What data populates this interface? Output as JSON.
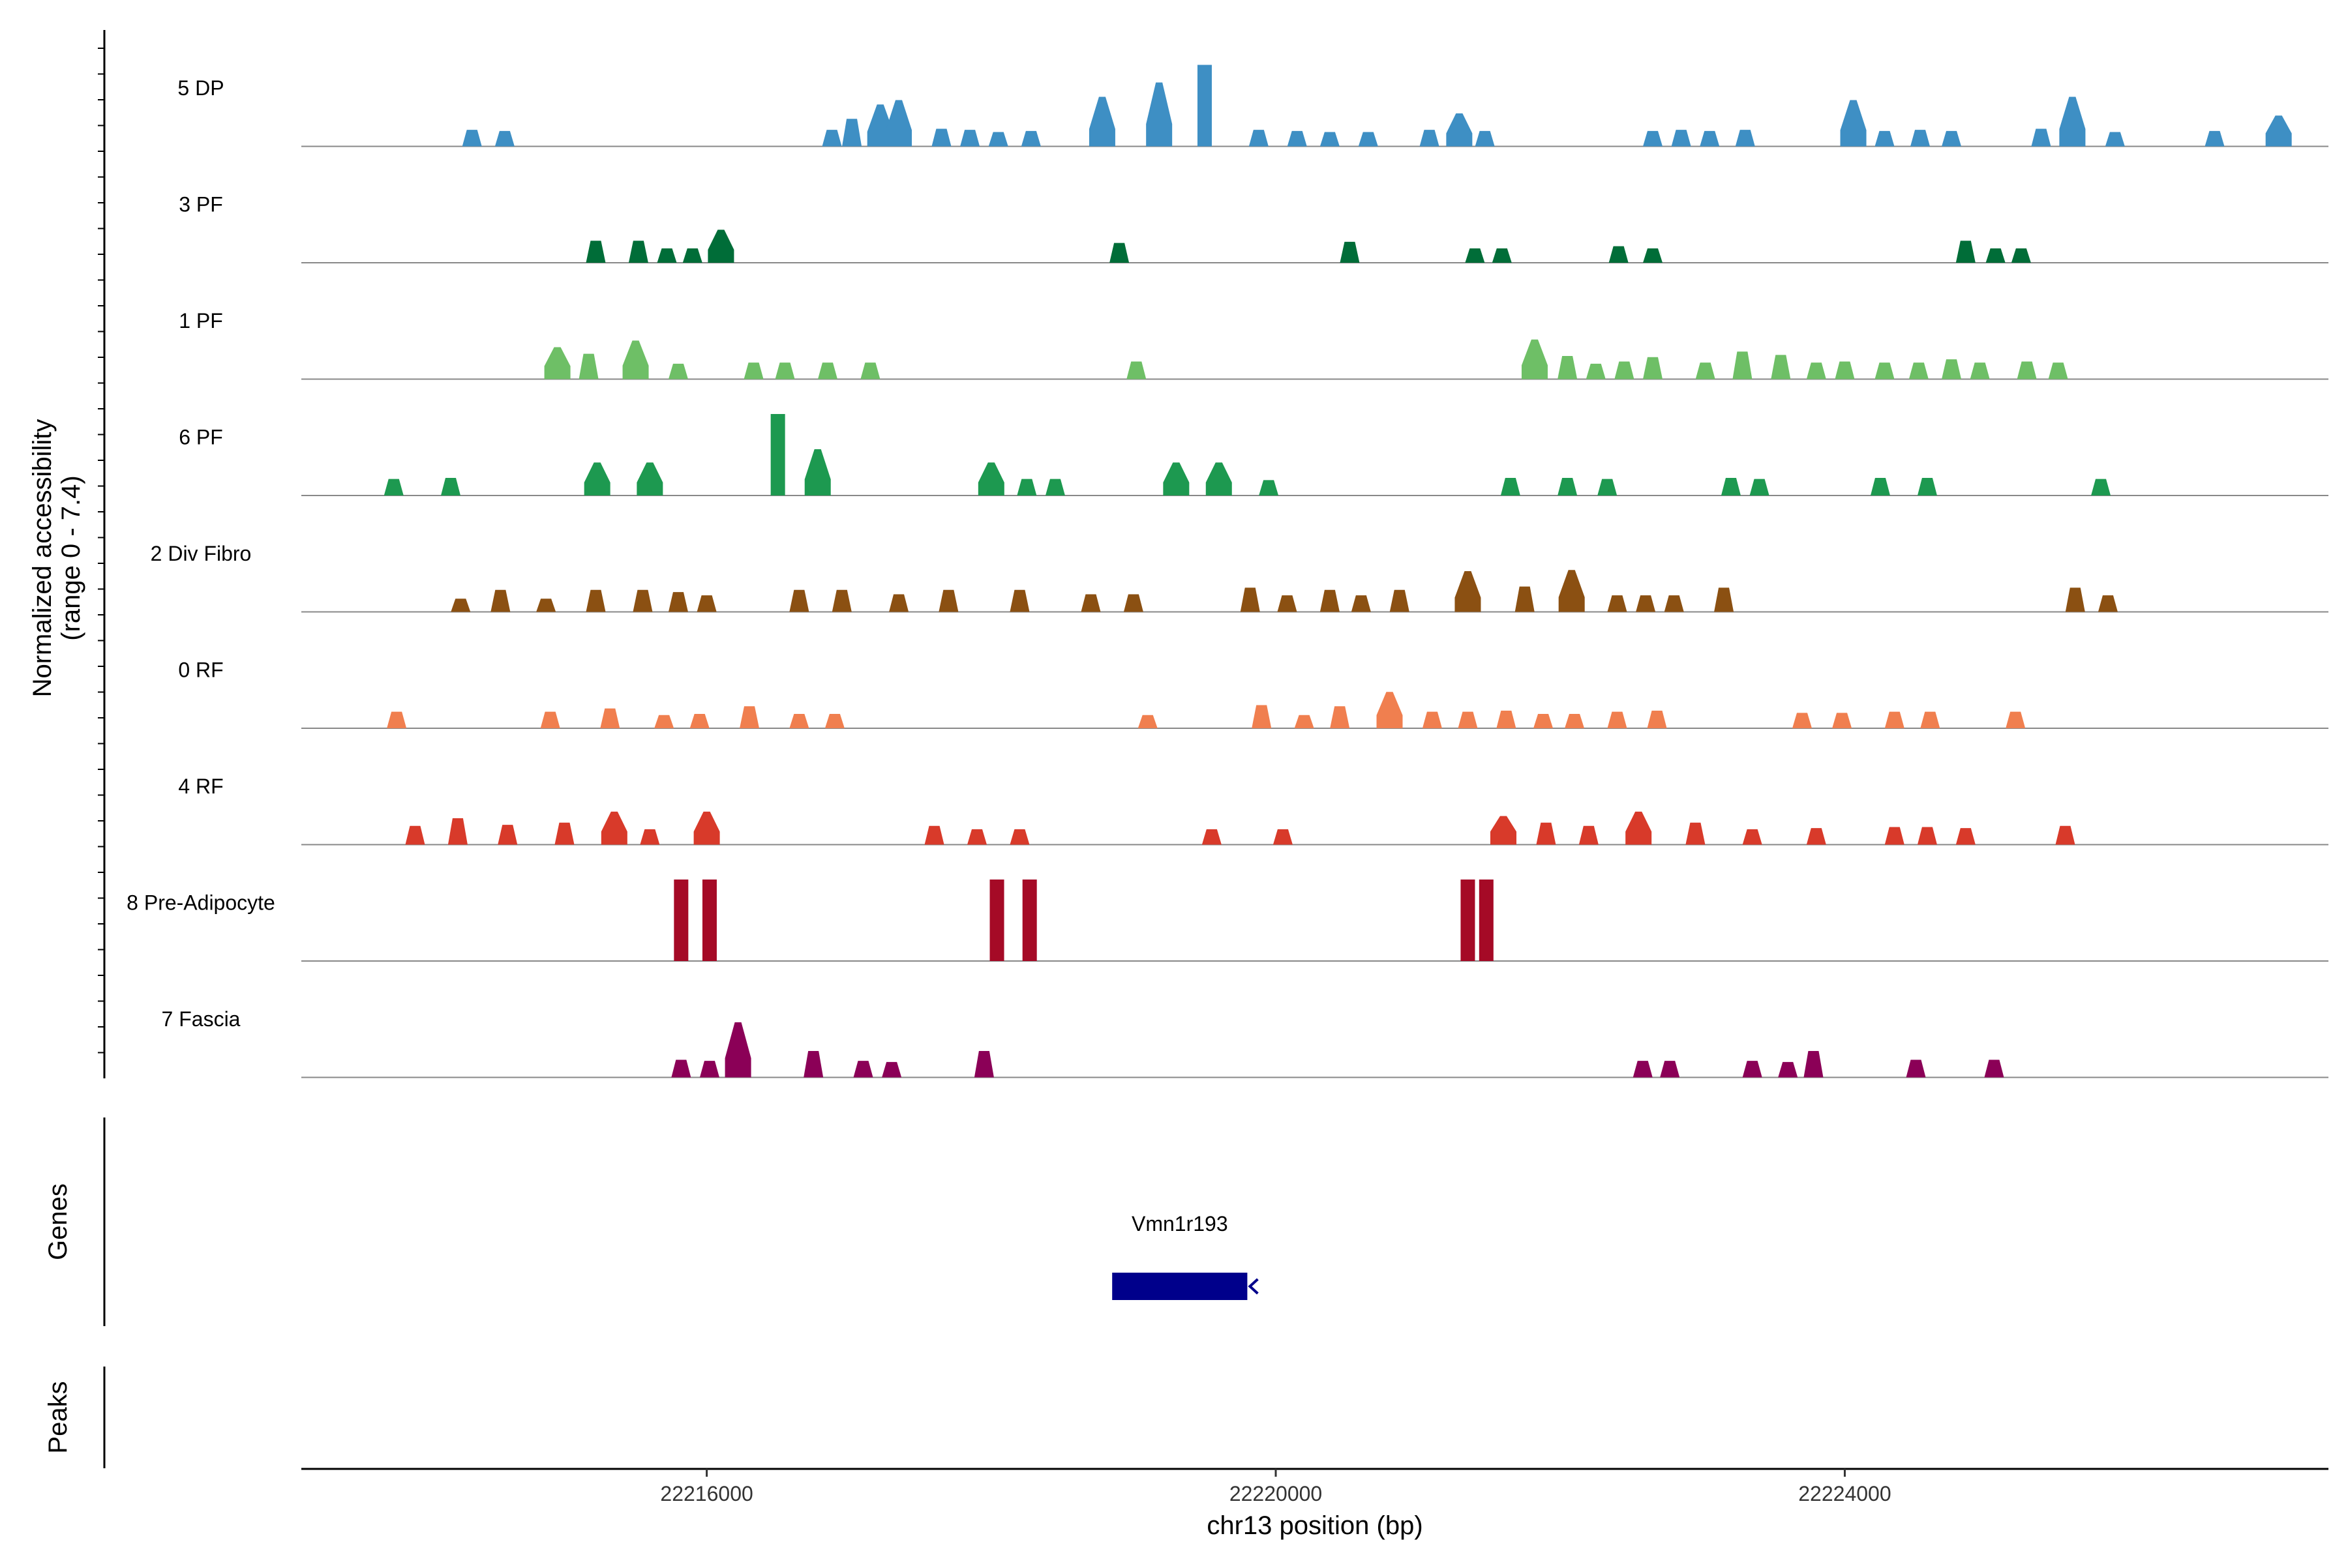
{
  "chart_data": {
    "type": "area",
    "title": "",
    "ylabel_line1": "Normalized accessibility",
    "ylabel_line2": "(range 0 - 7.4)",
    "y_range": [
      0,
      7.4
    ],
    "xlabel": "chr13 position (bp)",
    "xlim": [
      22213150,
      22227400
    ],
    "x_ticks": [
      22216000,
      22220000,
      22224000
    ],
    "x_tick_labels": [
      "22216000",
      "22220000",
      "22224000"
    ],
    "genes_panel_label": "Genes",
    "peaks_panel_label": "Peaks",
    "genes": [
      {
        "name": "Vmn1r193",
        "start": 22218850,
        "end": 22219800,
        "strand": "-",
        "color": "#00008B"
      }
    ],
    "peaks": [],
    "tracks": [
      {
        "name": "5 DP",
        "color": "#3E8FC4",
        "peaks": [
          [
            22214350,
            1.5
          ],
          [
            22214580,
            1.4
          ],
          [
            22216880,
            1.5
          ],
          [
            22217020,
            2.5
          ],
          [
            22217220,
            3.8
          ],
          [
            22217350,
            4.2
          ],
          [
            22217650,
            1.6
          ],
          [
            22217850,
            1.5
          ],
          [
            22218050,
            1.3
          ],
          [
            22218280,
            1.4
          ],
          [
            22218780,
            4.5
          ],
          [
            22219180,
            5.8
          ],
          [
            22219500,
            7.4
          ],
          [
            22219880,
            1.5
          ],
          [
            22220150,
            1.4
          ],
          [
            22220380,
            1.3
          ],
          [
            22220650,
            1.3
          ],
          [
            22221080,
            1.5
          ],
          [
            22221290,
            3.0
          ],
          [
            22221470,
            1.4
          ],
          [
            22222650,
            1.4
          ],
          [
            22222850,
            1.5
          ],
          [
            22223050,
            1.4
          ],
          [
            22223300,
            1.5
          ],
          [
            22224060,
            4.2
          ],
          [
            22224280,
            1.4
          ],
          [
            22224530,
            1.5
          ],
          [
            22224750,
            1.4
          ],
          [
            22225380,
            1.6
          ],
          [
            22225600,
            4.5
          ],
          [
            22225900,
            1.3
          ],
          [
            22226600,
            1.4
          ],
          [
            22227050,
            2.8
          ]
        ]
      },
      {
        "name": "3 PF",
        "color": "#006D38",
        "peaks": [
          [
            22215220,
            2.0
          ],
          [
            22215520,
            2.0
          ],
          [
            22215720,
            1.3
          ],
          [
            22215900,
            1.3
          ],
          [
            22216100,
            3.0
          ],
          [
            22218900,
            1.8
          ],
          [
            22220520,
            1.9
          ],
          [
            22221400,
            1.3
          ],
          [
            22221590,
            1.3
          ],
          [
            22222410,
            1.5
          ],
          [
            22222650,
            1.3
          ],
          [
            22224850,
            2.0
          ],
          [
            22225060,
            1.3
          ],
          [
            22225240,
            1.3
          ]
        ]
      },
      {
        "name": "1 PF",
        "color": "#6EBF66",
        "peaks": [
          [
            22214950,
            2.9
          ],
          [
            22215170,
            2.3
          ],
          [
            22215500,
            3.5
          ],
          [
            22215800,
            1.4
          ],
          [
            22216330,
            1.5
          ],
          [
            22216550,
            1.5
          ],
          [
            22216850,
            1.5
          ],
          [
            22217150,
            1.5
          ],
          [
            22219020,
            1.6
          ],
          [
            22221820,
            3.6
          ],
          [
            22222050,
            2.1
          ],
          [
            22222250,
            1.4
          ],
          [
            22222450,
            1.6
          ],
          [
            22222650,
            2.0
          ],
          [
            22223020,
            1.5
          ],
          [
            22223280,
            2.5
          ],
          [
            22223550,
            2.2
          ],
          [
            22223800,
            1.5
          ],
          [
            22224000,
            1.6
          ],
          [
            22224280,
            1.5
          ],
          [
            22224520,
            1.5
          ],
          [
            22224750,
            1.8
          ],
          [
            22224950,
            1.5
          ],
          [
            22225280,
            1.6
          ],
          [
            22225500,
            1.5
          ]
        ]
      },
      {
        "name": "6 PF",
        "color": "#1D9950",
        "peaks": [
          [
            22213800,
            1.5
          ],
          [
            22214200,
            1.6
          ],
          [
            22215230,
            3.0
          ],
          [
            22215600,
            3.0
          ],
          [
            22216500,
            7.4
          ],
          [
            22216780,
            4.2
          ],
          [
            22218000,
            3.0
          ],
          [
            22218250,
            1.5
          ],
          [
            22218450,
            1.5
          ],
          [
            22219300,
            3.0
          ],
          [
            22219600,
            3.0
          ],
          [
            22219950,
            1.4
          ],
          [
            22221650,
            1.6
          ],
          [
            22222050,
            1.6
          ],
          [
            22222330,
            1.5
          ],
          [
            22223200,
            1.6
          ],
          [
            22223400,
            1.5
          ],
          [
            22224250,
            1.6
          ],
          [
            22224580,
            1.6
          ],
          [
            22225800,
            1.5
          ]
        ]
      },
      {
        "name": "2 Div Fibro",
        "color": "#8B5012",
        "peaks": [
          [
            22214270,
            1.2
          ],
          [
            22214550,
            2.0
          ],
          [
            22214870,
            1.2
          ],
          [
            22215220,
            2.0
          ],
          [
            22215550,
            2.0
          ],
          [
            22215800,
            1.8
          ],
          [
            22216000,
            1.5
          ],
          [
            22216650,
            2.0
          ],
          [
            22216950,
            2.0
          ],
          [
            22217350,
            1.6
          ],
          [
            22217700,
            2.0
          ],
          [
            22218200,
            2.0
          ],
          [
            22218700,
            1.6
          ],
          [
            22219000,
            1.6
          ],
          [
            22219820,
            2.2
          ],
          [
            22220080,
            1.5
          ],
          [
            22220380,
            2.0
          ],
          [
            22220600,
            1.5
          ],
          [
            22220870,
            2.0
          ],
          [
            22221350,
            3.7
          ],
          [
            22221750,
            2.3
          ],
          [
            22222080,
            3.8
          ],
          [
            22222400,
            1.5
          ],
          [
            22222600,
            1.5
          ],
          [
            22222800,
            1.5
          ],
          [
            22223150,
            2.2
          ],
          [
            22225620,
            2.2
          ],
          [
            22225850,
            1.5
          ]
        ]
      },
      {
        "name": "0 RF",
        "color": "#F07F4F",
        "peaks": [
          [
            22213820,
            1.5
          ],
          [
            22214900,
            1.5
          ],
          [
            22215320,
            1.8
          ],
          [
            22215700,
            1.2
          ],
          [
            22215950,
            1.3
          ],
          [
            22216300,
            2.0
          ],
          [
            22216650,
            1.3
          ],
          [
            22216900,
            1.3
          ],
          [
            22219100,
            1.2
          ],
          [
            22219900,
            2.1
          ],
          [
            22220200,
            1.2
          ],
          [
            22220450,
            2.0
          ],
          [
            22220800,
            3.3
          ],
          [
            22221100,
            1.5
          ],
          [
            22221350,
            1.5
          ],
          [
            22221620,
            1.6
          ],
          [
            22221880,
            1.3
          ],
          [
            22222100,
            1.3
          ],
          [
            22222400,
            1.5
          ],
          [
            22222680,
            1.6
          ],
          [
            22223700,
            1.4
          ],
          [
            22223980,
            1.4
          ],
          [
            22224350,
            1.5
          ],
          [
            22224600,
            1.5
          ],
          [
            22225200,
            1.5
          ]
        ]
      },
      {
        "name": "4 RF",
        "color": "#D83A2A",
        "peaks": [
          [
            22213950,
            1.7
          ],
          [
            22214250,
            2.4
          ],
          [
            22214600,
            1.8
          ],
          [
            22215000,
            2.0
          ],
          [
            22215350,
            3.0
          ],
          [
            22215600,
            1.4
          ],
          [
            22216000,
            3.0
          ],
          [
            22217600,
            1.7
          ],
          [
            22217900,
            1.4
          ],
          [
            22218200,
            1.4
          ],
          [
            22219550,
            1.4
          ],
          [
            22220050,
            1.4
          ],
          [
            22221600,
            2.6
          ],
          [
            22221900,
            2.0
          ],
          [
            22222200,
            1.7
          ],
          [
            22222550,
            3.0
          ],
          [
            22222950,
            2.0
          ],
          [
            22223350,
            1.4
          ],
          [
            22223800,
            1.5
          ],
          [
            22224350,
            1.6
          ],
          [
            22224580,
            1.6
          ],
          [
            22224850,
            1.5
          ],
          [
            22225550,
            1.7
          ]
        ]
      },
      {
        "name": "8 Pre-Adipocyte",
        "color": "#A50A26",
        "peaks": [
          [
            22215820,
            7.4
          ],
          [
            22216020,
            7.4
          ],
          [
            22218040,
            7.4
          ],
          [
            22218270,
            7.4
          ],
          [
            22221350,
            7.4
          ],
          [
            22221480,
            7.4
          ]
        ]
      },
      {
        "name": "7 Fascia",
        "color": "#8B0057",
        "peaks": [
          [
            22215820,
            1.6
          ],
          [
            22216020,
            1.5
          ],
          [
            22216220,
            5.0
          ],
          [
            22216750,
            2.4
          ],
          [
            22217100,
            1.5
          ],
          [
            22217300,
            1.4
          ],
          [
            22217950,
            2.4
          ],
          [
            22222580,
            1.5
          ],
          [
            22222770,
            1.5
          ],
          [
            22223350,
            1.5
          ],
          [
            22223600,
            1.4
          ],
          [
            22223780,
            2.4
          ],
          [
            22224500,
            1.6
          ],
          [
            22225050,
            1.6
          ]
        ]
      }
    ]
  }
}
